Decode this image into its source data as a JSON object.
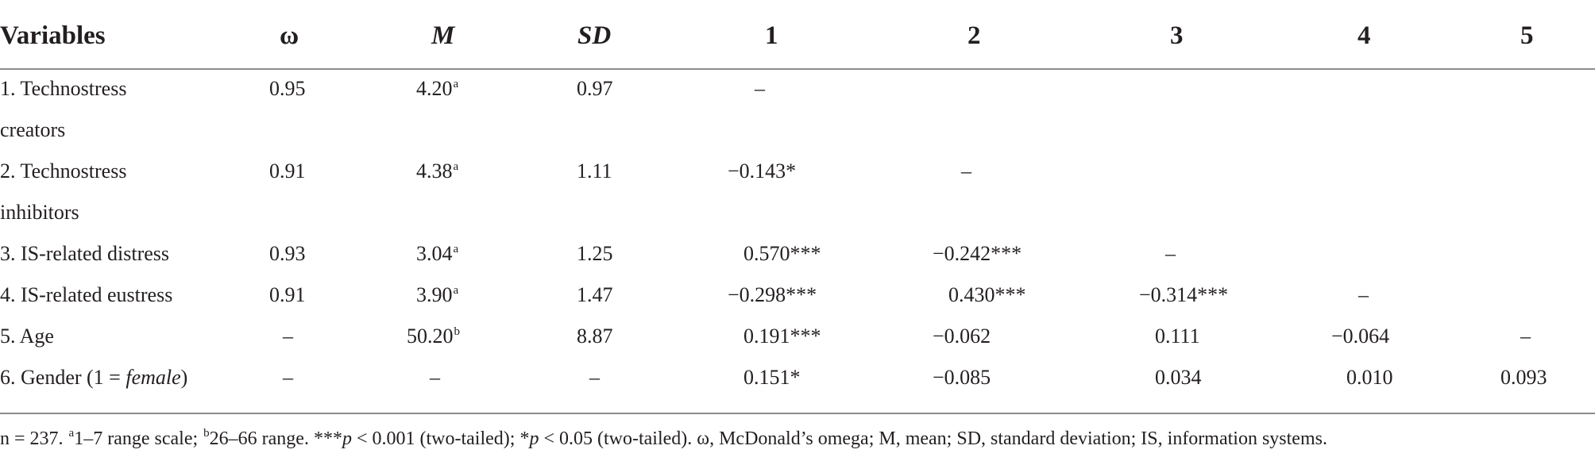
{
  "headers": {
    "variables": "Variables",
    "omega": "ω",
    "mean": "M",
    "sd": "SD",
    "c1": "1",
    "c2": "2",
    "c3": "3",
    "c4": "4",
    "c5": "5"
  },
  "rows": [
    {
      "label_line1": "1. Technostress",
      "label_line2": "creators",
      "omega": "0.95",
      "mean": "4.20",
      "mean_sup": "a",
      "sd": "0.97",
      "c1": "–",
      "c2": "",
      "c3": "",
      "c4": "",
      "c5": ""
    },
    {
      "label_line1": "2. Technostress",
      "label_line2": "inhibitors",
      "omega": "0.91",
      "mean": "4.38",
      "mean_sup": "a",
      "sd": "1.11",
      "c1": "−0.143*",
      "c2": "–",
      "c3": "",
      "c4": "",
      "c5": ""
    },
    {
      "label_line1": "3. IS-related distress",
      "omega": "0.93",
      "mean": "3.04",
      "mean_sup": "a",
      "sd": "1.25",
      "c1": "0.570***",
      "c2": "−0.242***",
      "c3": "–",
      "c4": "",
      "c5": ""
    },
    {
      "label_line1": "4. IS-related eustress",
      "omega": "0.91",
      "mean": "3.90",
      "mean_sup": "a",
      "sd": "1.47",
      "c1": "−0.298***",
      "c2": "0.430***",
      "c3": "−0.314***",
      "c4": "–",
      "c5": ""
    },
    {
      "label_line1": "5. Age",
      "omega": "–",
      "mean": "50.20",
      "mean_sup": "b",
      "sd": "8.87",
      "c1": "0.191***",
      "c2": "−0.062",
      "c3": "0.111",
      "c4": "−0.064",
      "c5": "–"
    },
    {
      "label_pre": "6. Gender (1 = ",
      "label_italic": "female",
      "label_post": ")",
      "omega": "–",
      "mean": "–",
      "mean_sup": "",
      "sd": "–",
      "c1": "0.151*",
      "c2": "−0.085",
      "c3": "0.034",
      "c4": "0.010",
      "c5": "0.093"
    }
  ],
  "note": {
    "n": "n = 237. ",
    "sup_a": "a",
    "range_a": "1–7 range scale; ",
    "sup_b": "b",
    "range_b": "26–66 range. ***",
    "p1": "p",
    "p1_text": " < 0.001 (two-tailed); *",
    "p2": "p",
    "p2_text": " < 0.05 (two-tailed). ω, McDonald’s omega; M, mean; SD, standard deviation; IS, information systems."
  }
}
